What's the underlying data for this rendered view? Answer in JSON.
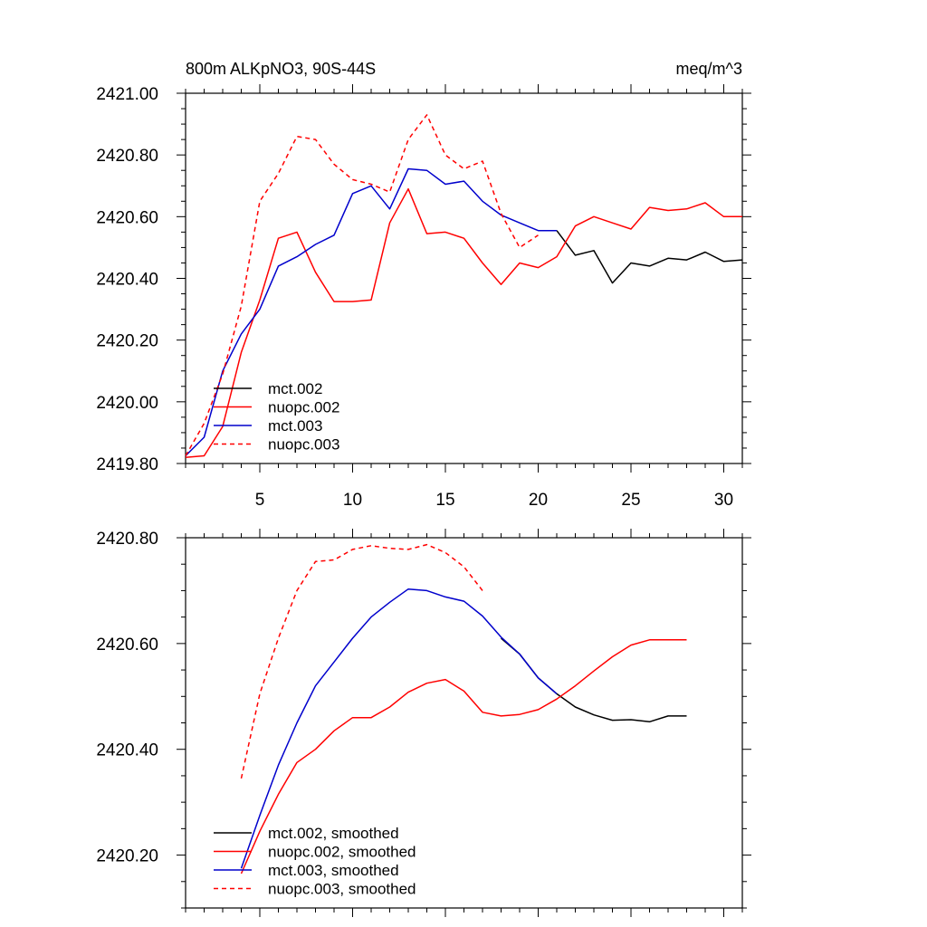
{
  "chart_data": [
    {
      "type": "line",
      "title": "800m ALKpNO3, 90S-44S",
      "units": "meq/m^3",
      "xlabel": "",
      "ylabel": "",
      "xlim": [
        1,
        31
      ],
      "ylim": [
        2419.8,
        2421.0
      ],
      "x_ticks": [
        5,
        10,
        15,
        20,
        25,
        30
      ],
      "y_ticks": [
        2419.8,
        2420.0,
        2420.2,
        2420.4,
        2420.6,
        2420.8,
        2421.0
      ],
      "x_tick_labels": [
        "5",
        "10",
        "15",
        "20",
        "25",
        "30"
      ],
      "y_tick_labels": [
        "2419.80",
        "2420.00",
        "2420.20",
        "2420.40",
        "2420.60",
        "2420.80",
        "2421.00"
      ],
      "legend_position": "bottom-left",
      "series": [
        {
          "name": "mct.002",
          "color": "#000000",
          "dash": "solid",
          "x": [
            21,
            22,
            23,
            24,
            25,
            26,
            27,
            28,
            29,
            30,
            31
          ],
          "y": [
            2420.555,
            2420.475,
            2420.49,
            2420.385,
            2420.45,
            2420.44,
            2420.465,
            2420.46,
            2420.485,
            2420.455,
            2420.46
          ]
        },
        {
          "name": "nuopc.002",
          "color": "#ff0000",
          "dash": "solid",
          "x": [
            1,
            2,
            3,
            4,
            5,
            6,
            7,
            8,
            9,
            10,
            11,
            12,
            13,
            14,
            15,
            16,
            17,
            18,
            19,
            20,
            21,
            22,
            23,
            24,
            25,
            26,
            27,
            28,
            29,
            30,
            31
          ],
          "y": [
            2419.82,
            2419.825,
            2419.92,
            2420.16,
            2420.33,
            2420.53,
            2420.55,
            2420.42,
            2420.325,
            2420.325,
            2420.33,
            2420.58,
            2420.69,
            2420.545,
            2420.55,
            2420.53,
            2420.45,
            2420.38,
            2420.45,
            2420.435,
            2420.47,
            2420.57,
            2420.6,
            2420.58,
            2420.56,
            2420.63,
            2420.62,
            2420.625,
            2420.645,
            2420.6,
            2420.6
          ]
        },
        {
          "name": "mct.003",
          "color": "#0000cc",
          "dash": "solid",
          "x": [
            1,
            2,
            3,
            4,
            5,
            6,
            7,
            8,
            9,
            10,
            11,
            12,
            13,
            14,
            15,
            16,
            17,
            18,
            19,
            20,
            21
          ],
          "y": [
            2419.825,
            2419.885,
            2420.1,
            2420.22,
            2420.3,
            2420.44,
            2420.47,
            2420.51,
            2420.54,
            2420.675,
            2420.7,
            2420.625,
            2420.755,
            2420.75,
            2420.705,
            2420.715,
            2420.65,
            2420.605,
            2420.58,
            2420.555,
            2420.555
          ]
        },
        {
          "name": "nuopc.003",
          "color": "#ff0000",
          "dash": "dashed",
          "x": [
            1,
            2,
            3,
            4,
            5,
            6,
            7,
            8,
            9,
            10,
            11,
            12,
            13,
            14,
            15,
            16,
            17,
            18,
            19,
            20
          ],
          "y": [
            2419.825,
            2419.93,
            2420.09,
            2420.31,
            2420.65,
            2420.74,
            2420.86,
            2420.85,
            2420.77,
            2420.72,
            2420.705,
            2420.68,
            2420.85,
            2420.93,
            2420.8,
            2420.755,
            2420.78,
            2420.61,
            2420.5,
            2420.54
          ]
        }
      ]
    },
    {
      "type": "line",
      "title": "",
      "xlabel": "",
      "ylabel": "",
      "xlim": [
        1,
        31
      ],
      "ylim": [
        2420.1,
        2420.8
      ],
      "x_ticks": [
        5,
        10,
        15,
        20,
        25,
        30
      ],
      "y_ticks": [
        2420.2,
        2420.4,
        2420.6,
        2420.8
      ],
      "y_tick_labels": [
        "2420.20",
        "2420.40",
        "2420.60",
        "2420.80"
      ],
      "legend_position": "bottom-left",
      "series": [
        {
          "name": "mct.002, smoothed",
          "color": "#000000",
          "dash": "solid",
          "x": [
            18,
            19,
            20,
            21,
            22,
            23,
            24,
            25,
            26,
            27,
            28
          ],
          "y": [
            2420.61,
            2420.58,
            2420.535,
            2420.505,
            2420.48,
            2420.465,
            2420.455,
            2420.456,
            2420.452,
            2420.463,
            2420.463
          ]
        },
        {
          "name": "nuopc.002, smoothed",
          "color": "#ff0000",
          "dash": "solid",
          "x": [
            4,
            5,
            6,
            7,
            8,
            9,
            10,
            11,
            12,
            13,
            14,
            15,
            16,
            17,
            18,
            19,
            20,
            21,
            22,
            23,
            24,
            25,
            26,
            27,
            28
          ],
          "y": [
            2420.165,
            2420.245,
            2420.315,
            2420.375,
            2420.4,
            2420.435,
            2420.46,
            2420.46,
            2420.48,
            2420.508,
            2420.525,
            2420.532,
            2420.51,
            2420.47,
            2420.463,
            2420.466,
            2420.475,
            2420.495,
            2420.52,
            2420.548,
            2420.575,
            2420.597,
            2420.607,
            2420.607,
            2420.607
          ]
        },
        {
          "name": "mct.003, smoothed",
          "color": "#0000cc",
          "dash": "solid",
          "x": [
            4,
            5,
            6,
            7,
            8,
            9,
            10,
            11,
            12,
            13,
            14,
            15,
            16,
            17,
            18,
            19,
            20,
            21
          ],
          "y": [
            2420.175,
            2420.275,
            2420.37,
            2420.45,
            2420.52,
            2420.565,
            2420.61,
            2420.65,
            2420.678,
            2420.703,
            2420.7,
            2420.688,
            2420.68,
            2420.652,
            2420.612,
            2420.58,
            2420.535,
            2420.505
          ]
        },
        {
          "name": "nuopc.003, smoothed",
          "color": "#ff0000",
          "dash": "dashed",
          "x": [
            4,
            5,
            6,
            7,
            8,
            9,
            10,
            11,
            12,
            13,
            14,
            15,
            16,
            17
          ],
          "y": [
            2420.345,
            2420.505,
            2420.61,
            2420.7,
            2420.755,
            2420.758,
            2420.778,
            2420.785,
            2420.78,
            2420.778,
            2420.787,
            2420.772,
            2420.745,
            2420.7
          ]
        }
      ]
    }
  ]
}
